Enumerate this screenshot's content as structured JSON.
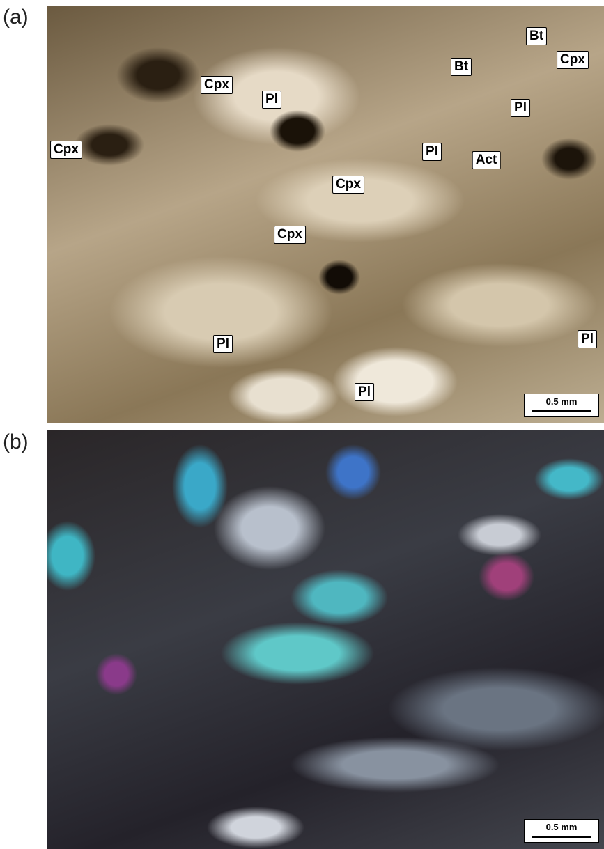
{
  "panels": [
    {
      "label": "(a)",
      "minerals": [
        "Bt",
        "Cpx",
        "Bt",
        "Cpx",
        "Pl",
        "Pl",
        "Cpx",
        "Pl",
        "Act",
        "Cpx",
        "Cpx",
        "Pl",
        "Pl",
        "Pl"
      ],
      "scale_bar": "0.5 mm"
    },
    {
      "label": "(b)",
      "scale_bar": "0.5 mm"
    }
  ]
}
